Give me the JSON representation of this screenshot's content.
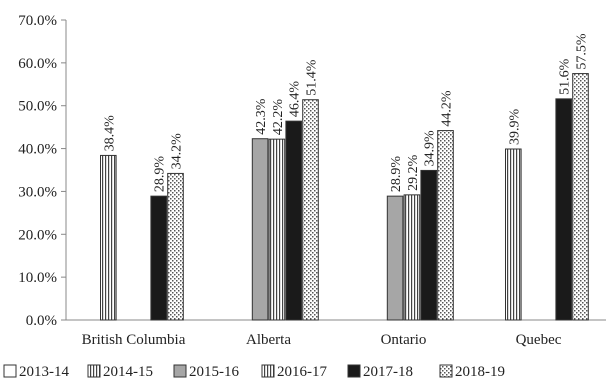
{
  "chart_data": {
    "type": "bar",
    "title": "",
    "xlabel": "",
    "ylabel": "",
    "ylim": [
      0,
      70
    ],
    "y_ticks": [
      "0.0%",
      "10.0%",
      "20.0%",
      "30.0%",
      "40.0%",
      "50.0%",
      "60.0%",
      "70.0%"
    ],
    "categories": [
      "British Columbia",
      "Alberta",
      "Ontario",
      "Quebec"
    ],
    "legend_position": "bottom",
    "series": [
      {
        "name": "2013-14",
        "pattern": "white",
        "values": [
          null,
          null,
          null,
          null
        ],
        "labels": [
          null,
          null,
          null,
          null
        ]
      },
      {
        "name": "2014-15",
        "pattern": "vertical-lines",
        "values": [
          38.4,
          null,
          null,
          39.9
        ],
        "labels": [
          "38.4%",
          null,
          null,
          "39.9%"
        ]
      },
      {
        "name": "2015-16",
        "pattern": "gray",
        "values": [
          null,
          42.3,
          28.9,
          null
        ],
        "labels": [
          null,
          "42.3%",
          "28.9%",
          null
        ]
      },
      {
        "name": "2016-17",
        "pattern": "vertical-lines",
        "values": [
          null,
          42.2,
          29.2,
          null
        ],
        "labels": [
          null,
          "42.2%",
          "29.2%",
          null
        ]
      },
      {
        "name": "2017-18",
        "pattern": "black",
        "values": [
          28.9,
          46.4,
          34.9,
          51.6
        ],
        "labels": [
          "28.9%",
          "46.4%",
          "34.9%",
          "51.6%"
        ]
      },
      {
        "name": "2018-19",
        "pattern": "dotted",
        "values": [
          34.2,
          51.4,
          44.2,
          57.5
        ],
        "labels": [
          "34.2%",
          "51.4%",
          "44.2%",
          "57.5%"
        ]
      }
    ],
    "colors": {
      "axis": "#888888",
      "text": "#222222",
      "black_bar": "#1a1a1a",
      "gray_bar": "#a6a6a6",
      "outline": "#333333"
    }
  }
}
